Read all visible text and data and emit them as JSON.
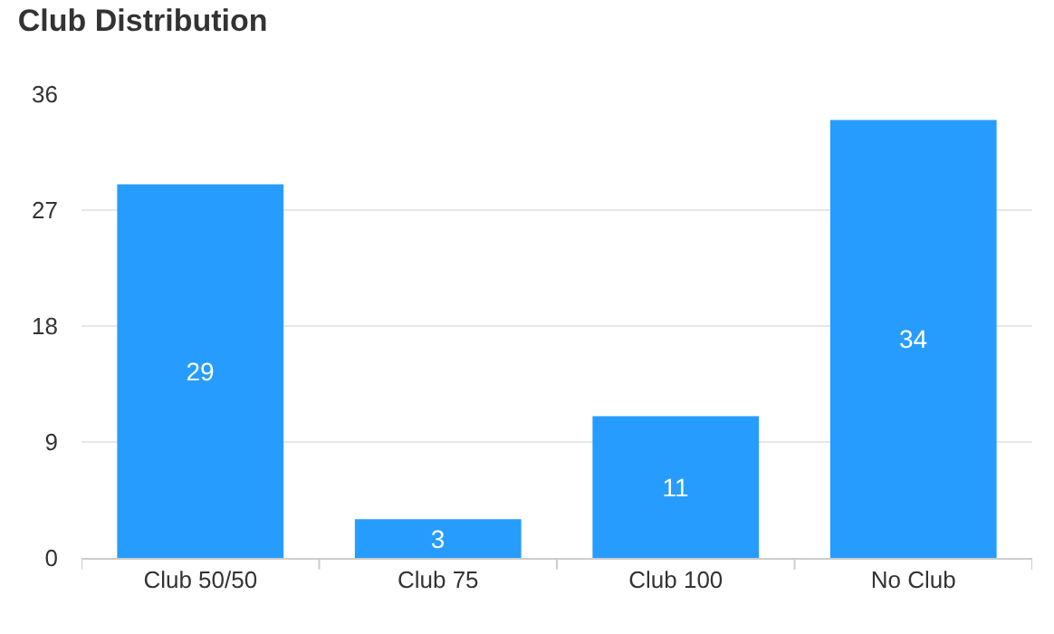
{
  "chart_data": {
    "type": "bar",
    "title": "Club Distribution",
    "categories": [
      "Club 50/50",
      "Club 75",
      "Club 100",
      "No Club"
    ],
    "values": [
      29,
      3,
      11,
      34
    ],
    "color": "#269cff",
    "ylim": [
      0,
      36
    ],
    "yticks": [
      0,
      9,
      18,
      27,
      36
    ],
    "grid": "y",
    "data_labels": true
  }
}
